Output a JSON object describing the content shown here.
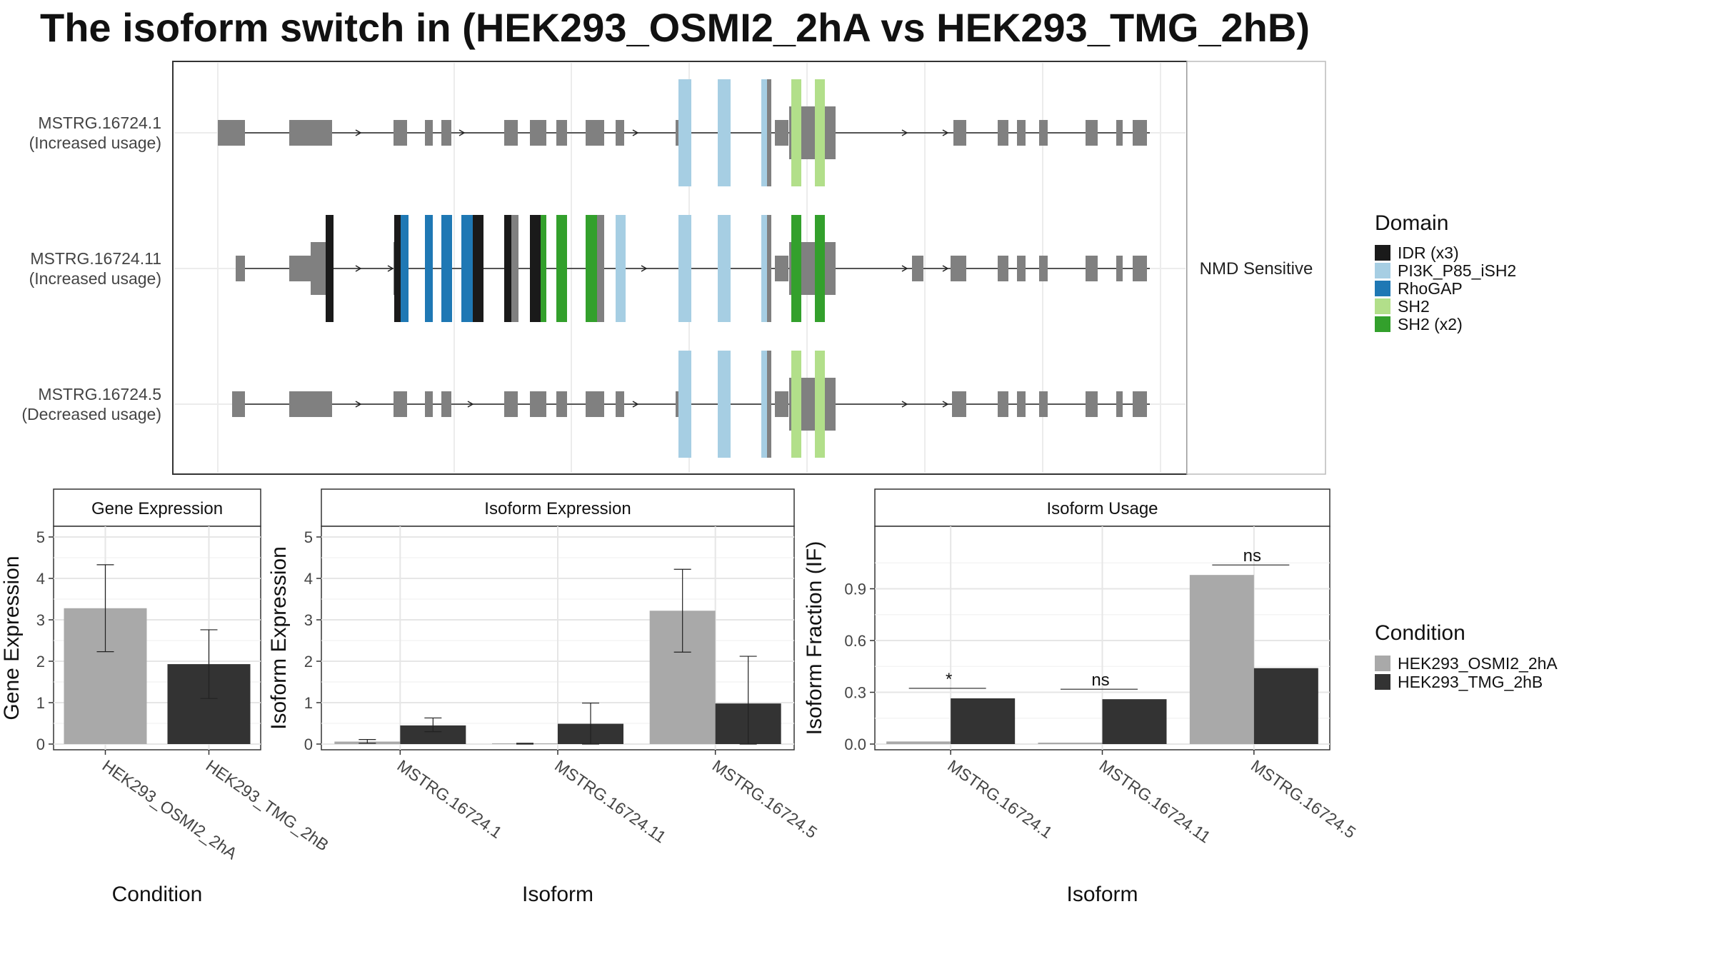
{
  "title": "The isoform switch in  (HEK293_OSMI2_2hA vs HEK293_TMG_2hB)",
  "colors": {
    "exon": "#808080",
    "osmi": "#a9a9a9",
    "tmg": "#333333",
    "IDR": "#1a1a1a",
    "PI3K": "#a6cee3",
    "RhoGAP": "#1f78b4",
    "SH2": "#b2df8a",
    "SH2x2": "#33a02c"
  },
  "transcripts": [
    {
      "name": "MSTRG.16724.1",
      "usage": "(Increased usage)",
      "note": ""
    },
    {
      "name": "MSTRG.16724.11",
      "usage": "(Increased usage)",
      "note": "NMD Sensitive"
    },
    {
      "name": "MSTRG.16724.5",
      "usage": "(Decreased usage)",
      "note": ""
    }
  ],
  "domain_legend": {
    "title": "Domain",
    "items": [
      {
        "label": "IDR (x3)",
        "color_key": "IDR"
      },
      {
        "label": "PI3K_P85_iSH2",
        "color_key": "PI3K"
      },
      {
        "label": "RhoGAP",
        "color_key": "RhoGAP"
      },
      {
        "label": "SH2",
        "color_key": "SH2"
      },
      {
        "label": "SH2 (x2)",
        "color_key": "SH2x2"
      }
    ]
  },
  "condition_legend": {
    "title": "Condition",
    "items": [
      {
        "label": "HEK293_OSMI2_2hA",
        "color_key": "osmi"
      },
      {
        "label": "HEK293_TMG_2hB",
        "color_key": "tmg"
      }
    ]
  },
  "chart_data": [
    {
      "type": "bar",
      "title": "Gene Expression",
      "xlabel": "Condition",
      "ylabel": "Gene Expression",
      "ylim": [
        0,
        5
      ],
      "yticks": [
        "0",
        "1",
        "2",
        "3",
        "4",
        "5"
      ],
      "categories": [
        "HEK293_OSMI2_2hA",
        "HEK293_TMG_2hB"
      ],
      "values": [
        3.28,
        1.93
      ],
      "errors": [
        [
          2.23,
          4.33
        ],
        [
          1.1,
          2.76
        ]
      ]
    },
    {
      "type": "bar",
      "title": "Isoform Expression",
      "xlabel": "Isoform",
      "ylabel": "Isoform Expression",
      "ylim": [
        0,
        5
      ],
      "yticks": [
        "0",
        "1",
        "2",
        "3",
        "4",
        "5"
      ],
      "categories": [
        "MSTRG.16724.1",
        "MSTRG.16724.11",
        "MSTRG.16724.5"
      ],
      "series": [
        {
          "name": "HEK293_OSMI2_2hA",
          "values": [
            0.06,
            0.01,
            3.22
          ],
          "errors": [
            [
              0.02,
              0.11
            ],
            [
              0.0,
              0.02
            ],
            [
              2.22,
              4.22
            ]
          ]
        },
        {
          "name": "HEK293_TMG_2hB",
          "values": [
            0.45,
            0.49,
            0.98
          ],
          "errors": [
            [
              0.3,
              0.63
            ],
            [
              0.0,
              0.99
            ],
            [
              0.0,
              2.12
            ]
          ]
        }
      ]
    },
    {
      "type": "bar",
      "title": "Isoform Usage",
      "xlabel": "Isoform",
      "ylabel": "Isoform Fraction (IF)",
      "ylim": [
        0,
        1.2
      ],
      "yticks": [
        "0.0",
        "0.3",
        "0.6",
        "0.9"
      ],
      "categories": [
        "MSTRG.16724.1",
        "MSTRG.16724.11",
        "MSTRG.16724.5"
      ],
      "series": [
        {
          "name": "HEK293_OSMI2_2hA",
          "values": [
            0.015,
            0.0,
            0.98
          ]
        },
        {
          "name": "HEK293_TMG_2hB",
          "values": [
            0.265,
            0.26,
            0.44
          ]
        }
      ],
      "significance": [
        "*",
        "ns",
        "ns"
      ]
    }
  ]
}
